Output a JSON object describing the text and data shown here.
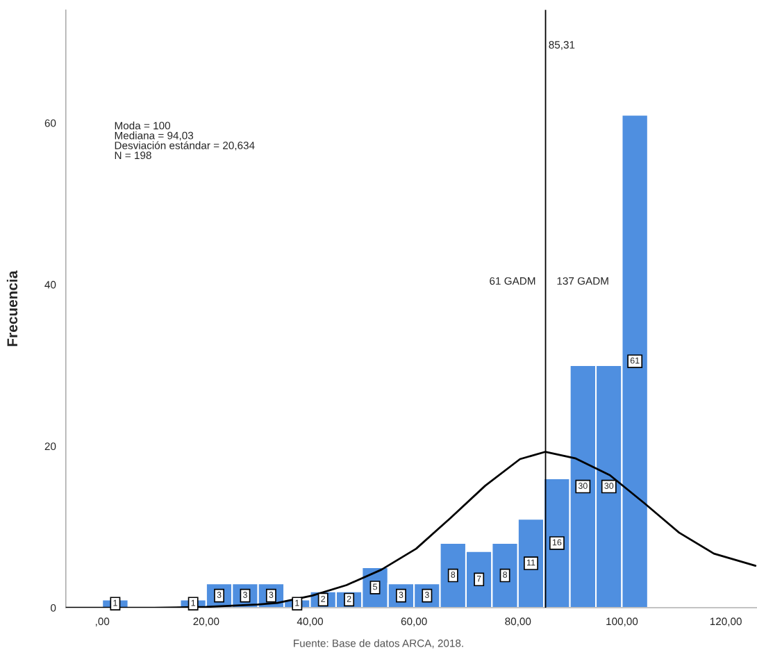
{
  "chart_data": {
    "type": "histogram",
    "ylabel": "Frecuencia",
    "bins": [
      0,
      5,
      10,
      15,
      20,
      25,
      30,
      35,
      40,
      45,
      50,
      55,
      60,
      65,
      70,
      75,
      80,
      85,
      90,
      95,
      100,
      105
    ],
    "values": [
      1,
      0,
      0,
      1,
      3,
      3,
      3,
      1,
      2,
      2,
      5,
      3,
      3,
      8,
      7,
      8,
      11,
      16,
      30,
      30,
      61
    ],
    "value_labels": [
      "1",
      null,
      null,
      "1",
      "3",
      "3",
      "3",
      "1",
      "2",
      "2",
      "5",
      "3",
      "3",
      "8",
      "7",
      "8",
      "11",
      "16",
      "30",
      "30",
      "61"
    ],
    "color": "#4f8fe0",
    "series": [
      {
        "type": "line",
        "color": "#000000",
        "x": [
          -7,
          0,
          10,
          20,
          30,
          33.7,
          40.4,
          47,
          53.7,
          60.4,
          67,
          73.7,
          80.4,
          85.3,
          91,
          97.7,
          104.4,
          111,
          117.7,
          125.7
        ],
        "values": [
          0,
          0,
          0,
          0.1,
          0.4,
          0.6,
          1.5,
          2.8,
          4.7,
          7.3,
          11.1,
          15.1,
          18.4,
          19.3,
          18.5,
          16.4,
          12.9,
          9.3,
          6.7,
          5.2
        ]
      }
    ],
    "xlim": [
      -7,
      126
    ],
    "xticks": [
      {
        "value": 0,
        "label": ",00"
      },
      {
        "value": 20,
        "label": "20,00"
      },
      {
        "value": 40,
        "label": "40,00"
      },
      {
        "value": 60,
        "label": "60,00"
      },
      {
        "value": 80,
        "label": "80,00"
      },
      {
        "value": 100,
        "label": "100,00"
      },
      {
        "value": 120,
        "label": "120,00"
      }
    ],
    "ylim": [
      0,
      74
    ],
    "yticks": [
      0,
      20,
      40,
      60
    ],
    "ref_lines": [
      {
        "axis": "x",
        "value": 85.31,
        "label": "85,31",
        "color": "#000000"
      }
    ],
    "annotations": [
      "Moda = 100\nMediana = 94,03\nDesviación estándar = 20,634\nN = 198",
      "61 GADM",
      "137 GADM",
      "Fuente: Base de datos ARCA, 2018."
    ],
    "grid": false
  }
}
